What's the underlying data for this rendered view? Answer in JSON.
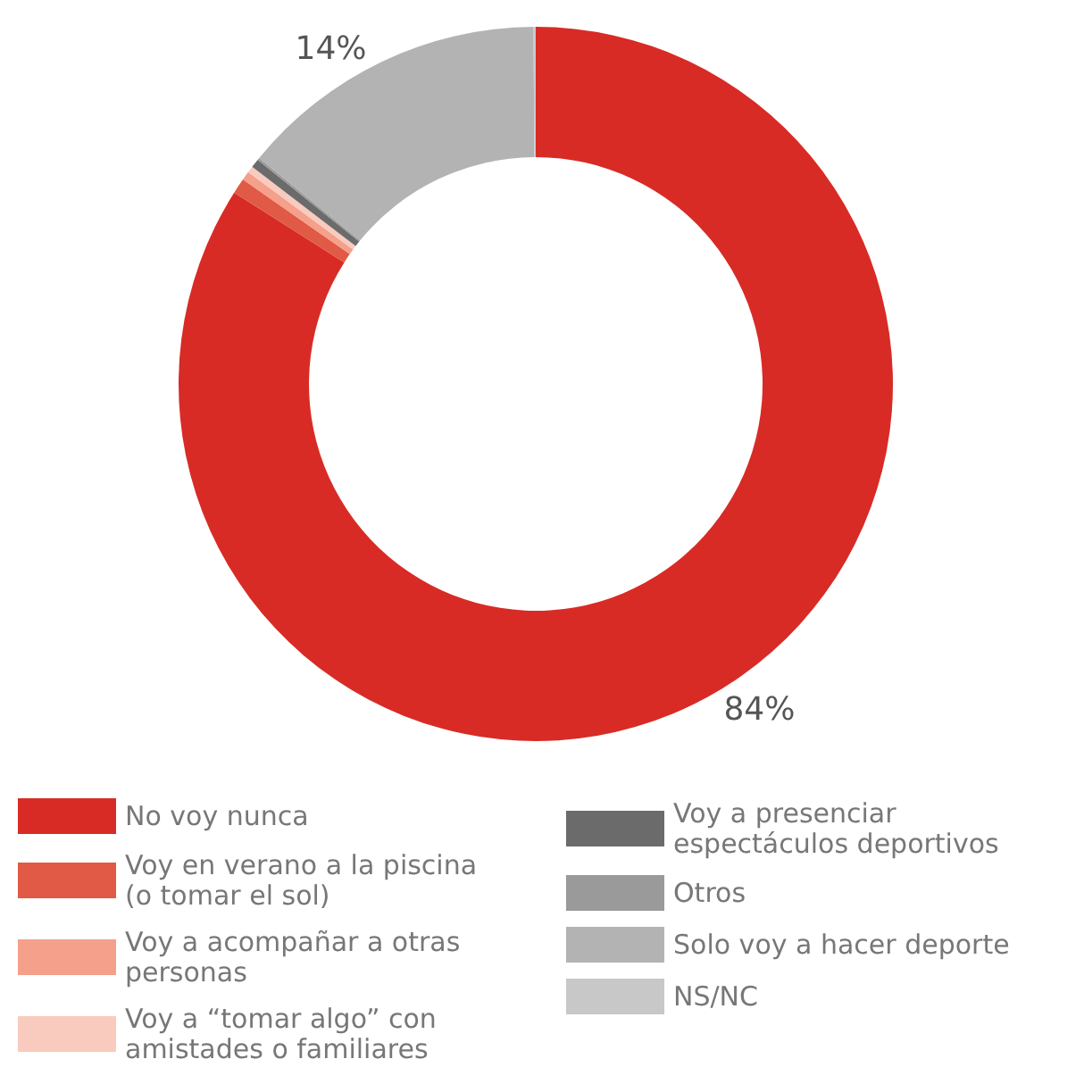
{
  "chart_data": {
    "type": "donut",
    "categories": [
      "No voy nunca",
      "Voy en verano a la piscina (o tomar el sol)",
      "Voy a acompañar a otras personas",
      "Voy a “tomar algo” con amistades o familiares",
      "Voy a presenciar espectáculos deportivos",
      "Otros",
      "Solo voy a hacer deporte",
      "NS/NC"
    ],
    "values": [
      84,
      0.7,
      0.4,
      0.3,
      0.4,
      0.1,
      14,
      0.1
    ],
    "value_labels": [
      "84%",
      null,
      null,
      null,
      null,
      null,
      "14%",
      null
    ],
    "colors": [
      "#d82b25",
      "#e05a45",
      "#f4a08a",
      "#f9cbbf",
      "#6b6b6b",
      "#9a9a9a",
      "#b3b3b3",
      "#c8c8c8"
    ],
    "legend": "bottom"
  }
}
